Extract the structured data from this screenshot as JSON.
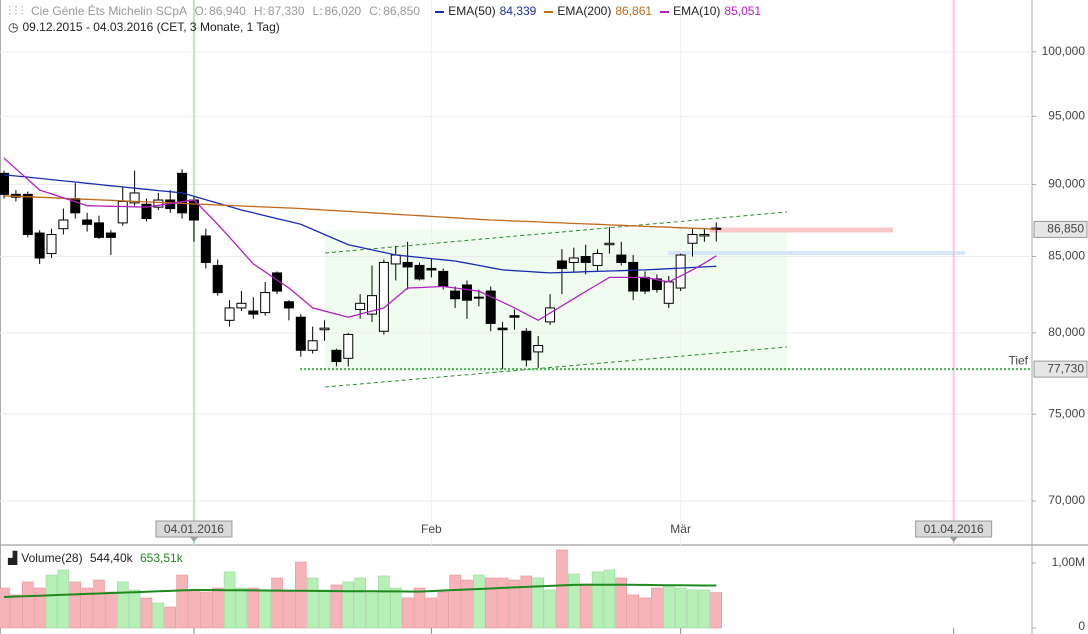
{
  "header": {
    "title": "Cie Génle Éts Michelin SCpA",
    "ohlc": [
      {
        "key": "O:",
        "label": "86,940"
      },
      {
        "key": "H:",
        "label": "87,330"
      },
      {
        "key": "L:",
        "label": "86,020"
      },
      {
        "key": "C:",
        "label": "86,850"
      }
    ],
    "range": "09.12.2015 - 04.03.2016 (CET, 3 Monate, 1 Tag)"
  },
  "chart_data": [
    {
      "type": "candlestick",
      "log": true,
      "grid": true,
      "up_color": "#ffffff",
      "down_color": "#000000",
      "ylim": [
        67600,
        104200
      ],
      "yticks": [
        {
          "value": 70000,
          "label": "70,000"
        },
        {
          "value": 75000,
          "label": "75,000"
        },
        {
          "value": 80000,
          "label": "80,000"
        },
        {
          "value": 85000,
          "label": "85,000"
        },
        {
          "value": 90000,
          "label": "90,000"
        },
        {
          "value": 95000,
          "label": "95,000"
        },
        {
          "value": 100000,
          "label": "100,000"
        }
      ],
      "xlim": [
        -0.34,
        86.6
      ],
      "xticks": [
        {
          "value": 16,
          "label": "04.01.2016",
          "color": "#b8ecb8"
        },
        {
          "value": 36,
          "label": "Feb"
        },
        {
          "value": 57,
          "label": "Mär"
        },
        {
          "value": 80,
          "label": "01.04.2016",
          "color": "#f5c4ee"
        }
      ],
      "open": [
        90800,
        89300,
        89300,
        86600,
        85200,
        86900,
        89000,
        87500,
        87300,
        86600,
        87300,
        88700,
        88600,
        88400,
        88900,
        90800,
        88900,
        86400,
        84400,
        80800,
        81600,
        81400,
        81300,
        83900,
        82000,
        81000,
        78900,
        80200,
        78900,
        78400,
        81500,
        81200,
        80100,
        84500,
        84600,
        84400,
        84200,
        84000,
        82700,
        83100,
        82300,
        82700,
        80300,
        81100,
        80100,
        78800,
        80700,
        84700,
        84600,
        85000,
        84400,
        85800,
        85100,
        84600,
        83600,
        83500,
        81900,
        82900,
        85900,
        86400,
        86940
      ],
      "high": [
        91000,
        89600,
        89500,
        86800,
        86900,
        88300,
        90100,
        88000,
        87800,
        86800,
        89800,
        91000,
        89000,
        89400,
        89600,
        91100,
        89200,
        86900,
        84800,
        82100,
        82700,
        82300,
        83300,
        84000,
        82100,
        81200,
        80400,
        80800,
        79000,
        80000,
        82500,
        84400,
        84800,
        85700,
        86000,
        84600,
        84900,
        84200,
        83000,
        83400,
        82800,
        83000,
        80700,
        81500,
        80300,
        79800,
        82500,
        85500,
        85600,
        85800,
        85500,
        87000,
        86000,
        85100,
        84000,
        83800,
        83700,
        85200,
        86900,
        86900,
        87330
      ],
      "low": [
        89000,
        88800,
        86300,
        84500,
        84900,
        86500,
        87600,
        86700,
        86200,
        85100,
        87100,
        88500,
        87400,
        88200,
        88000,
        87600,
        86000,
        84200,
        82400,
        80400,
        81400,
        80900,
        81100,
        82500,
        80800,
        78500,
        78700,
        79500,
        77900,
        77900,
        80900,
        80700,
        79900,
        83400,
        82800,
        83400,
        83600,
        82800,
        81600,
        80900,
        81700,
        80100,
        77730,
        80200,
        77900,
        77800,
        80500,
        82500,
        84000,
        83800,
        84000,
        85200,
        84400,
        82100,
        82500,
        82600,
        81600,
        82700,
        85000,
        86000,
        86020
      ],
      "close": [
        89300,
        89100,
        86500,
        84900,
        86500,
        87500,
        88000,
        87200,
        86300,
        86300,
        88800,
        89400,
        87600,
        88900,
        88300,
        88000,
        87500,
        84600,
        82600,
        81600,
        81900,
        81200,
        82600,
        82700,
        81600,
        78900,
        79500,
        80300,
        78200,
        79900,
        81900,
        82400,
        84600,
        85100,
        84300,
        83500,
        84100,
        83000,
        82200,
        82100,
        82300,
        80600,
        80200,
        81000,
        78300,
        79200,
        81600,
        84200,
        84900,
        84600,
        85200,
        85900,
        84600,
        82700,
        82700,
        82800,
        83300,
        85100,
        86500,
        86500,
        86850
      ],
      "series": [
        {
          "name": "EMA(50)",
          "color": "#1a2db0",
          "last_label": "84,339",
          "values": [
            90700,
            90610,
            90530,
            90440,
            90350,
            90260,
            90180,
            90090,
            90000,
            89910,
            89830,
            89740,
            89660,
            89570,
            89490,
            89400,
            89160,
            88920,
            88680,
            88440,
            88200,
            88000,
            87800,
            87600,
            87400,
            87200,
            86850,
            86500,
            86150,
            85800,
            85630,
            85450,
            85280,
            85100,
            85020,
            84940,
            84860,
            84780,
            84700,
            84550,
            84400,
            84250,
            84100,
            84050,
            84000,
            83950,
            83900,
            83930,
            83950,
            83980,
            84000,
            84030,
            84050,
            84080,
            84100,
            84140,
            84180,
            84220,
            84260,
            84300,
            84339
          ]
        },
        {
          "name": "EMA(200)",
          "color": "#c06a1a",
          "last_label": "86,861",
          "values": [
            89200,
            89160,
            89130,
            89090,
            89060,
            89020,
            88980,
            88950,
            88910,
            88880,
            88840,
            88800,
            88770,
            88730,
            88700,
            88660,
            88620,
            88590,
            88550,
            88520,
            88480,
            88440,
            88410,
            88370,
            88340,
            88300,
            88250,
            88200,
            88150,
            88100,
            88050,
            88000,
            87950,
            87900,
            87850,
            87800,
            87750,
            87700,
            87650,
            87600,
            87550,
            87500,
            87470,
            87430,
            87400,
            87370,
            87330,
            87300,
            87260,
            87230,
            87200,
            87160,
            87130,
            87100,
            87060,
            87030,
            87000,
            86960,
            86930,
            86900,
            86861
          ]
        },
        {
          "name": "EMA(10)",
          "color": "#b21ec4",
          "last_label": "85,051",
          "values": [
            91900,
            91130,
            90370,
            89600,
            89330,
            89050,
            88780,
            88500,
            88480,
            88460,
            88440,
            88420,
            88400,
            88530,
            88650,
            88780,
            88900,
            88050,
            87200,
            86300,
            85400,
            84500,
            83970,
            83430,
            82900,
            82250,
            81600,
            81400,
            81200,
            81000,
            81200,
            81400,
            81600,
            82250,
            82900,
            82930,
            82970,
            83000,
            82900,
            82800,
            82700,
            82330,
            81970,
            81600,
            81200,
            80800,
            81270,
            81730,
            82200,
            82670,
            83130,
            83600,
            83600,
            83600,
            83600,
            83450,
            83300,
            83700,
            84100,
            84550,
            85051
          ]
        }
      ],
      "price_labels": [
        {
          "value": 86850,
          "label": "86,850"
        },
        {
          "value": 77730,
          "label": "77,730",
          "name": "Tief"
        }
      ]
    },
    {
      "type": "bar",
      "title": "Volume(28)",
      "last_label": "544,40k",
      "up_color": "#b6f0b6",
      "down_color": "#f6b4b8",
      "ylim": [
        0,
        1230000
      ],
      "yticks": [
        0,
        {
          "value": 1000000,
          "label": "1,00M"
        }
      ],
      "values": [
        615000,
        508000,
        708000,
        615000,
        815000,
        892000,
        708000,
        615000,
        738000,
        554000,
        708000,
        585000,
        462000,
        385000,
        323000,
        815000,
        585000,
        554000,
        615000,
        862000,
        615000,
        615000,
        585000,
        769000,
        585000,
        1015000,
        769000,
        585000,
        662000,
        708000,
        769000,
        538000,
        800000,
        615000,
        462000,
        615000,
        462000,
        554000,
        815000,
        738000,
        815000,
        769000,
        769000,
        738000,
        800000,
        769000,
        585000,
        1200000,
        831000,
        677000,
        862000,
        892000,
        769000,
        508000,
        462000,
        615000,
        662000,
        615000,
        585000,
        585000,
        544400
      ],
      "average": {
        "color": "#1f8a1f",
        "last_label": "653,51k",
        "values": [
          477000,
          484000,
          490000,
          497000,
          504000,
          511000,
          517000,
          524000,
          531000,
          538000,
          544000,
          551000,
          558000,
          565000,
          571000,
          578000,
          585000,
          584000,
          583000,
          581000,
          580000,
          578000,
          577000,
          575000,
          574000,
          572000,
          571000,
          569000,
          568000,
          566000,
          565000,
          564000,
          563000,
          562000,
          561000,
          560000,
          568000,
          576000,
          584000,
          592000,
          600000,
          608000,
          616000,
          624000,
          632000,
          640000,
          648000,
          655000,
          662000,
          664000,
          665000,
          666000,
          665000,
          664000,
          662000,
          660000,
          658000,
          657000,
          655000,
          654000,
          653510
        ]
      }
    }
  ]
}
